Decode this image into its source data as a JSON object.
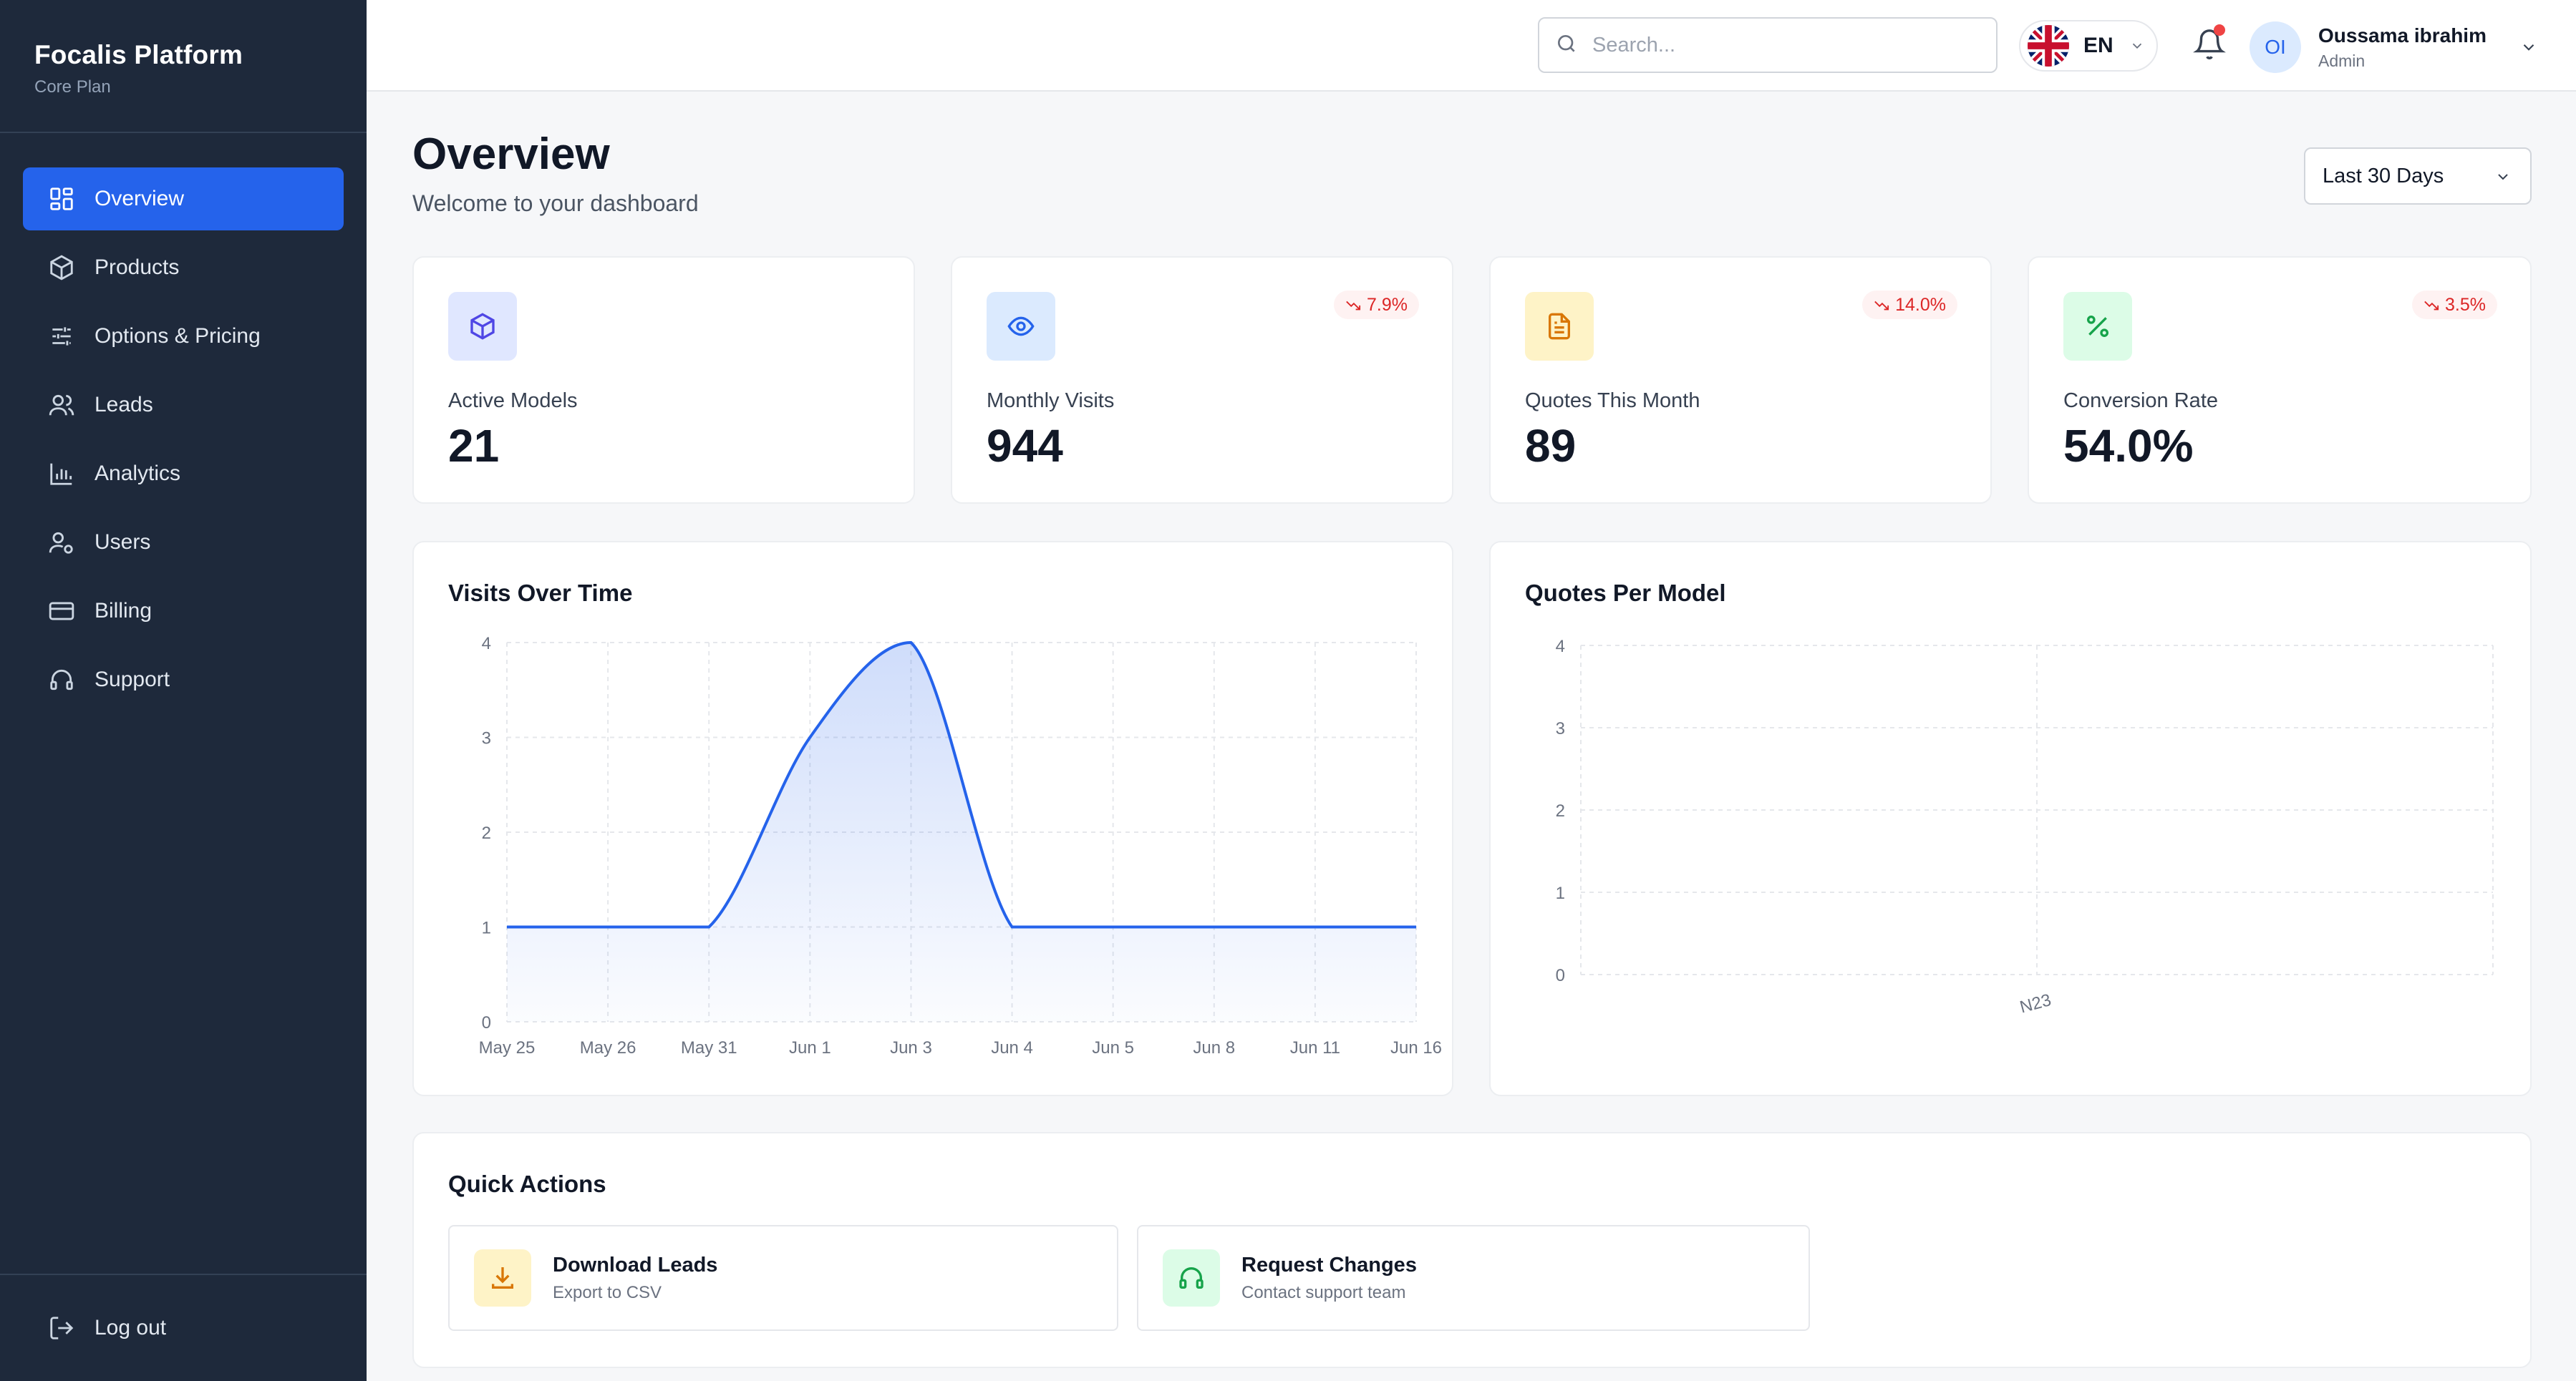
{
  "sidebar": {
    "brand_title": "Focalis Platform",
    "brand_plan": "Core Plan",
    "items": [
      {
        "label": "Overview",
        "icon": "dashboard-grid-icon",
        "active": true
      },
      {
        "label": "Products",
        "icon": "cube-icon"
      },
      {
        "label": "Options & Pricing",
        "icon": "sliders-icon"
      },
      {
        "label": "Leads",
        "icon": "users-icon"
      },
      {
        "label": "Analytics",
        "icon": "bar-chart-icon"
      },
      {
        "label": "Users",
        "icon": "user-cog-icon"
      },
      {
        "label": "Billing",
        "icon": "credit-card-icon"
      },
      {
        "label": "Support",
        "icon": "headset-icon"
      }
    ],
    "logout_label": "Log out"
  },
  "topbar": {
    "search_placeholder": "Search...",
    "language": "EN",
    "user_initials": "OI",
    "user_name": "Oussama ibrahim",
    "user_role": "Admin"
  },
  "header": {
    "title": "Overview",
    "subtitle": "Welcome to your dashboard",
    "date_range": "Last 30 Days"
  },
  "stats": [
    {
      "label": "Active Models",
      "value": "21",
      "trend": null,
      "icon": "cube-icon",
      "color": "#4f46e5",
      "bg": "#e0e7ff"
    },
    {
      "label": "Monthly Visits",
      "value": "944",
      "trend": "7.9%",
      "icon": "eye-icon",
      "color": "#2563eb",
      "bg": "#dbeafe"
    },
    {
      "label": "Quotes This Month",
      "value": "89",
      "trend": "14.0%",
      "icon": "document-icon",
      "color": "#d97706",
      "bg": "#fef3c7"
    },
    {
      "label": "Conversion Rate",
      "value": "54.0%",
      "trend": "3.5%",
      "icon": "percent-icon",
      "color": "#16a34a",
      "bg": "#dcfce7"
    }
  ],
  "charts": {
    "visits_title": "Visits Over Time",
    "quotes_title": "Quotes Per Model"
  },
  "chart_data": [
    {
      "type": "area",
      "title": "Visits Over Time",
      "x": [
        "May 25",
        "May 26",
        "May 31",
        "Jun 1",
        "Jun 3",
        "Jun 4",
        "Jun 5",
        "Jun 8",
        "Jun 11",
        "Jun 16"
      ],
      "y": [
        1,
        1,
        1,
        3,
        4,
        1,
        1,
        1,
        1,
        1
      ],
      "yticks": [
        0,
        1,
        2,
        3,
        4
      ],
      "ylim": [
        0,
        4
      ],
      "color": "#2563eb",
      "grid": true
    },
    {
      "type": "bar",
      "title": "Quotes Per Model",
      "categories": [
        "N23"
      ],
      "values": [
        0
      ],
      "yticks": [
        0,
        1,
        2,
        3,
        4
      ],
      "ylim": [
        0,
        4
      ],
      "grid": true
    }
  ],
  "quick_actions": {
    "title": "Quick Actions",
    "items": [
      {
        "label": "Download Leads",
        "sub": "Export to CSV",
        "icon": "download-icon",
        "color": "#d97706",
        "bg": "#fef3c7"
      },
      {
        "label": "Request Changes",
        "sub": "Contact support team",
        "icon": "headset-icon",
        "color": "#16a34a",
        "bg": "#dcfce7"
      }
    ]
  }
}
